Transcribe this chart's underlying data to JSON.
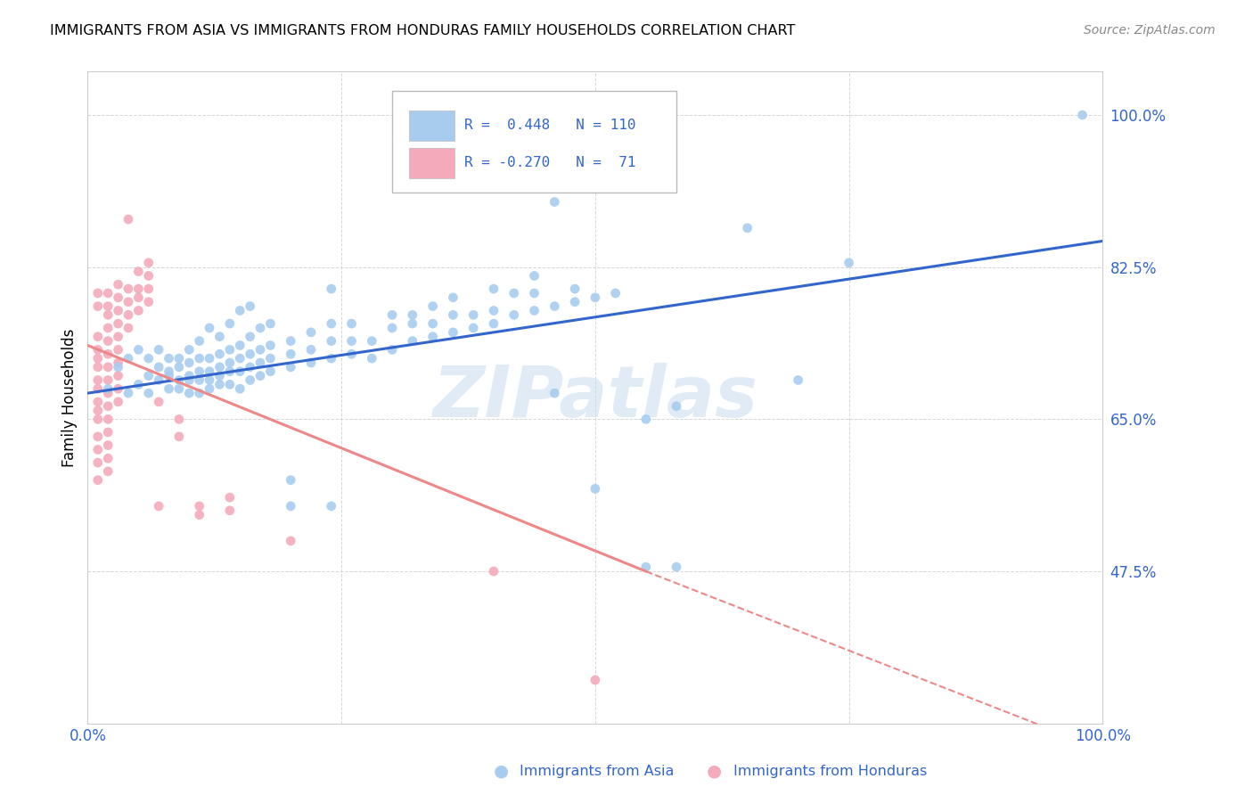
{
  "title": "IMMIGRANTS FROM ASIA VS IMMIGRANTS FROM HONDURAS FAMILY HOUSEHOLDS CORRELATION CHART",
  "source": "Source: ZipAtlas.com",
  "ylabel": "Family Households",
  "xlim": [
    0.0,
    1.0
  ],
  "ylim": [
    0.3,
    1.05
  ],
  "yticks": [
    0.475,
    0.65,
    0.825,
    1.0
  ],
  "ytick_labels": [
    "47.5%",
    "65.0%",
    "82.5%",
    "100.0%"
  ],
  "xticks": [
    0.0,
    0.25,
    0.5,
    0.75,
    1.0
  ],
  "xtick_labels": [
    "0.0%",
    "",
    "",
    "",
    "100.0%"
  ],
  "blue_color": "#A8CCEE",
  "pink_color": "#F4AABB",
  "blue_line_color": "#3366CC",
  "pink_line_color": "#EE8888",
  "blue_dark": "#3366CC",
  "watermark": "ZIPatlas",
  "asia_scatter": [
    [
      0.02,
      0.685
    ],
    [
      0.03,
      0.71
    ],
    [
      0.04,
      0.68
    ],
    [
      0.04,
      0.72
    ],
    [
      0.05,
      0.69
    ],
    [
      0.05,
      0.73
    ],
    [
      0.06,
      0.7
    ],
    [
      0.06,
      0.72
    ],
    [
      0.06,
      0.68
    ],
    [
      0.07,
      0.71
    ],
    [
      0.07,
      0.695
    ],
    [
      0.07,
      0.73
    ],
    [
      0.08,
      0.685
    ],
    [
      0.08,
      0.7
    ],
    [
      0.08,
      0.705
    ],
    [
      0.08,
      0.72
    ],
    [
      0.09,
      0.685
    ],
    [
      0.09,
      0.695
    ],
    [
      0.09,
      0.71
    ],
    [
      0.09,
      0.72
    ],
    [
      0.1,
      0.68
    ],
    [
      0.1,
      0.695
    ],
    [
      0.1,
      0.7
    ],
    [
      0.1,
      0.715
    ],
    [
      0.1,
      0.73
    ],
    [
      0.11,
      0.68
    ],
    [
      0.11,
      0.695
    ],
    [
      0.11,
      0.705
    ],
    [
      0.11,
      0.72
    ],
    [
      0.11,
      0.74
    ],
    [
      0.12,
      0.685
    ],
    [
      0.12,
      0.695
    ],
    [
      0.12,
      0.705
    ],
    [
      0.12,
      0.72
    ],
    [
      0.12,
      0.755
    ],
    [
      0.13,
      0.69
    ],
    [
      0.13,
      0.7
    ],
    [
      0.13,
      0.71
    ],
    [
      0.13,
      0.725
    ],
    [
      0.13,
      0.745
    ],
    [
      0.14,
      0.69
    ],
    [
      0.14,
      0.705
    ],
    [
      0.14,
      0.715
    ],
    [
      0.14,
      0.73
    ],
    [
      0.14,
      0.76
    ],
    [
      0.15,
      0.685
    ],
    [
      0.15,
      0.705
    ],
    [
      0.15,
      0.72
    ],
    [
      0.15,
      0.735
    ],
    [
      0.15,
      0.775
    ],
    [
      0.16,
      0.695
    ],
    [
      0.16,
      0.71
    ],
    [
      0.16,
      0.725
    ],
    [
      0.16,
      0.745
    ],
    [
      0.16,
      0.78
    ],
    [
      0.17,
      0.7
    ],
    [
      0.17,
      0.715
    ],
    [
      0.17,
      0.73
    ],
    [
      0.17,
      0.755
    ],
    [
      0.18,
      0.705
    ],
    [
      0.18,
      0.72
    ],
    [
      0.18,
      0.735
    ],
    [
      0.18,
      0.76
    ],
    [
      0.2,
      0.71
    ],
    [
      0.2,
      0.725
    ],
    [
      0.2,
      0.74
    ],
    [
      0.2,
      0.58
    ],
    [
      0.22,
      0.715
    ],
    [
      0.22,
      0.73
    ],
    [
      0.22,
      0.75
    ],
    [
      0.24,
      0.72
    ],
    [
      0.24,
      0.74
    ],
    [
      0.24,
      0.76
    ],
    [
      0.24,
      0.8
    ],
    [
      0.26,
      0.725
    ],
    [
      0.26,
      0.74
    ],
    [
      0.26,
      0.76
    ],
    [
      0.28,
      0.72
    ],
    [
      0.28,
      0.74
    ],
    [
      0.3,
      0.73
    ],
    [
      0.3,
      0.755
    ],
    [
      0.3,
      0.77
    ],
    [
      0.32,
      0.74
    ],
    [
      0.32,
      0.76
    ],
    [
      0.32,
      0.77
    ],
    [
      0.34,
      0.745
    ],
    [
      0.34,
      0.76
    ],
    [
      0.34,
      0.78
    ],
    [
      0.36,
      0.75
    ],
    [
      0.36,
      0.77
    ],
    [
      0.36,
      0.79
    ],
    [
      0.38,
      0.755
    ],
    [
      0.38,
      0.77
    ],
    [
      0.4,
      0.76
    ],
    [
      0.4,
      0.775
    ],
    [
      0.4,
      0.8
    ],
    [
      0.42,
      0.77
    ],
    [
      0.42,
      0.795
    ],
    [
      0.44,
      0.775
    ],
    [
      0.44,
      0.795
    ],
    [
      0.44,
      0.815
    ],
    [
      0.46,
      0.78
    ],
    [
      0.46,
      0.68
    ],
    [
      0.46,
      0.9
    ],
    [
      0.48,
      0.785
    ],
    [
      0.48,
      0.8
    ],
    [
      0.5,
      0.57
    ],
    [
      0.5,
      0.79
    ],
    [
      0.52,
      0.795
    ],
    [
      0.55,
      0.65
    ],
    [
      0.55,
      0.48
    ],
    [
      0.58,
      0.665
    ],
    [
      0.58,
      0.48
    ],
    [
      0.65,
      0.87
    ],
    [
      0.7,
      0.695
    ],
    [
      0.75,
      0.83
    ],
    [
      0.98,
      1.0
    ],
    [
      0.2,
      0.55
    ],
    [
      0.24,
      0.55
    ]
  ],
  "honduras_scatter": [
    [
      0.01,
      0.795
    ],
    [
      0.01,
      0.78
    ],
    [
      0.01,
      0.745
    ],
    [
      0.01,
      0.73
    ],
    [
      0.01,
      0.72
    ],
    [
      0.01,
      0.71
    ],
    [
      0.01,
      0.695
    ],
    [
      0.01,
      0.685
    ],
    [
      0.01,
      0.67
    ],
    [
      0.01,
      0.66
    ],
    [
      0.01,
      0.65
    ],
    [
      0.01,
      0.63
    ],
    [
      0.01,
      0.615
    ],
    [
      0.01,
      0.6
    ],
    [
      0.01,
      0.58
    ],
    [
      0.02,
      0.795
    ],
    [
      0.02,
      0.78
    ],
    [
      0.02,
      0.77
    ],
    [
      0.02,
      0.755
    ],
    [
      0.02,
      0.74
    ],
    [
      0.02,
      0.725
    ],
    [
      0.02,
      0.71
    ],
    [
      0.02,
      0.695
    ],
    [
      0.02,
      0.68
    ],
    [
      0.02,
      0.665
    ],
    [
      0.02,
      0.65
    ],
    [
      0.02,
      0.635
    ],
    [
      0.02,
      0.62
    ],
    [
      0.02,
      0.605
    ],
    [
      0.02,
      0.59
    ],
    [
      0.03,
      0.805
    ],
    [
      0.03,
      0.79
    ],
    [
      0.03,
      0.775
    ],
    [
      0.03,
      0.76
    ],
    [
      0.03,
      0.745
    ],
    [
      0.03,
      0.73
    ],
    [
      0.03,
      0.715
    ],
    [
      0.03,
      0.7
    ],
    [
      0.03,
      0.685
    ],
    [
      0.03,
      0.67
    ],
    [
      0.04,
      0.88
    ],
    [
      0.04,
      0.8
    ],
    [
      0.04,
      0.785
    ],
    [
      0.04,
      0.77
    ],
    [
      0.04,
      0.755
    ],
    [
      0.05,
      0.82
    ],
    [
      0.05,
      0.8
    ],
    [
      0.05,
      0.79
    ],
    [
      0.05,
      0.775
    ],
    [
      0.06,
      0.83
    ],
    [
      0.06,
      0.815
    ],
    [
      0.06,
      0.8
    ],
    [
      0.06,
      0.785
    ],
    [
      0.07,
      0.67
    ],
    [
      0.07,
      0.55
    ],
    [
      0.09,
      0.65
    ],
    [
      0.09,
      0.63
    ],
    [
      0.11,
      0.55
    ],
    [
      0.11,
      0.54
    ],
    [
      0.14,
      0.56
    ],
    [
      0.14,
      0.545
    ],
    [
      0.2,
      0.51
    ],
    [
      0.4,
      0.475
    ],
    [
      0.5,
      0.35
    ]
  ],
  "asia_trendline": [
    [
      0.0,
      0.68
    ],
    [
      1.0,
      0.855
    ]
  ],
  "honduras_trendline_solid": [
    [
      0.0,
      0.735
    ],
    [
      0.55,
      0.475
    ]
  ],
  "honduras_trendline_dashed": [
    [
      0.55,
      0.475
    ],
    [
      1.0,
      0.27
    ]
  ]
}
